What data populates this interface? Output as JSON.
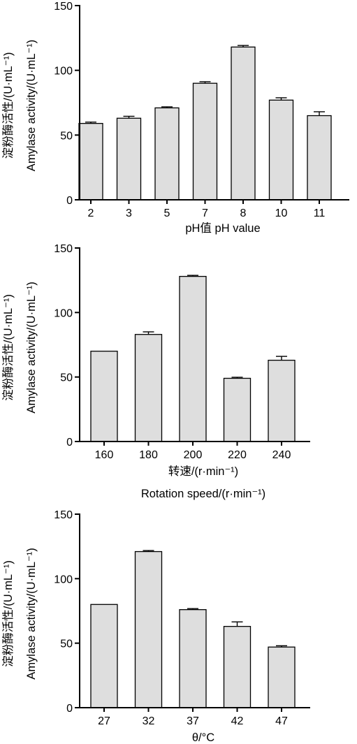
{
  "chart_data": [
    {
      "type": "bar",
      "categories": [
        "2",
        "3",
        "5",
        "7",
        "8",
        "10",
        "11"
      ],
      "values": [
        59,
        63,
        71,
        90,
        118,
        77,
        65
      ],
      "errors": [
        1,
        1.5,
        0.8,
        1.2,
        1.2,
        1.8,
        3
      ],
      "ylim": [
        0,
        150
      ],
      "yticks": [
        "0",
        "50",
        "100",
        "150"
      ],
      "ylabel_zh": "淀粉酶活性/(U·mL⁻¹)",
      "ylabel_en": "Amylase activity/(U·mL⁻¹)",
      "xlabel_lines": [
        "pH值 pH value"
      ]
    },
    {
      "type": "bar",
      "categories": [
        "160",
        "180",
        "200",
        "220",
        "240"
      ],
      "values": [
        70,
        83,
        128,
        49,
        63
      ],
      "errors": [
        0,
        2,
        0.8,
        0.8,
        3
      ],
      "ylim": [
        0,
        150
      ],
      "yticks": [
        "0",
        "50",
        "100",
        "150"
      ],
      "ylabel_zh": "淀粉酶活性/(U·mL⁻¹)",
      "ylabel_en": "Amylase activity/(U·mL⁻¹)",
      "xlabel_lines": [
        "转速/(r·min⁻¹)",
        "Rotation speed/(r·min⁻¹)"
      ]
    },
    {
      "type": "bar",
      "categories": [
        "27",
        "32",
        "37",
        "42",
        "47"
      ],
      "values": [
        80,
        121,
        76,
        63,
        47
      ],
      "errors": [
        0,
        0.8,
        0.8,
        3.5,
        1
      ],
      "ylim": [
        0,
        150
      ],
      "yticks": [
        "0",
        "50",
        "100",
        "150"
      ],
      "ylabel_zh": "淀粉酶活性/(U·mL⁻¹)",
      "ylabel_en": "Amylase activity/(U·mL⁻¹)",
      "xlabel_lines": [
        "θ/°C"
      ]
    }
  ]
}
